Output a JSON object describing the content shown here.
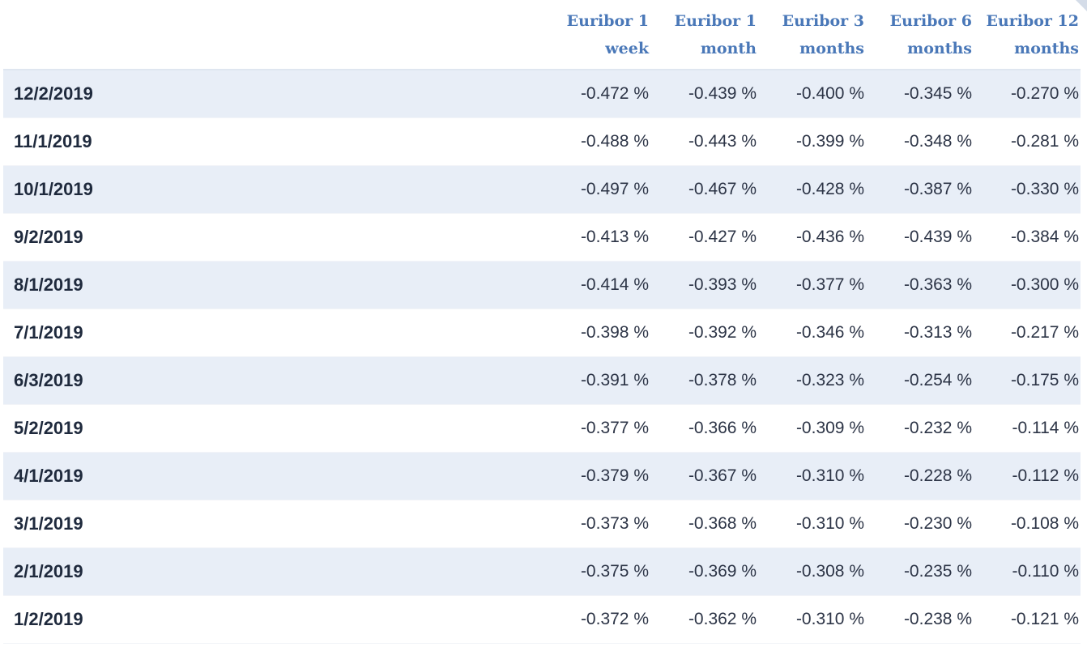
{
  "table": {
    "columns": [
      {
        "line1": "Euribor 1",
        "line2": "week"
      },
      {
        "line1": "Euribor 1",
        "line2": "month"
      },
      {
        "line1": "Euribor 3",
        "line2": "months"
      },
      {
        "line1": "Euribor 6",
        "line2": "months"
      },
      {
        "line1": "Euribor 12",
        "line2": "months"
      }
    ],
    "rows": [
      {
        "date": "12/2/2019",
        "values": [
          "-0.472 %",
          "-0.439 %",
          "-0.400 %",
          "-0.345 %",
          "-0.270 %"
        ]
      },
      {
        "date": "11/1/2019",
        "values": [
          "-0.488 %",
          "-0.443 %",
          "-0.399 %",
          "-0.348 %",
          "-0.281 %"
        ]
      },
      {
        "date": "10/1/2019",
        "values": [
          "-0.497 %",
          "-0.467 %",
          "-0.428 %",
          "-0.387 %",
          "-0.330 %"
        ]
      },
      {
        "date": "9/2/2019",
        "values": [
          "-0.413 %",
          "-0.427 %",
          "-0.436 %",
          "-0.439 %",
          "-0.384 %"
        ]
      },
      {
        "date": "8/1/2019",
        "values": [
          "-0.414 %",
          "-0.393 %",
          "-0.377 %",
          "-0.363 %",
          "-0.300 %"
        ]
      },
      {
        "date": "7/1/2019",
        "values": [
          "-0.398 %",
          "-0.392 %",
          "-0.346 %",
          "-0.313 %",
          "-0.217 %"
        ]
      },
      {
        "date": "6/3/2019",
        "values": [
          "-0.391 %",
          "-0.378 %",
          "-0.323 %",
          "-0.254 %",
          "-0.175 %"
        ]
      },
      {
        "date": "5/2/2019",
        "values": [
          "-0.377 %",
          "-0.366 %",
          "-0.309 %",
          "-0.232 %",
          "-0.114 %"
        ]
      },
      {
        "date": "4/1/2019",
        "values": [
          "-0.379 %",
          "-0.367 %",
          "-0.310 %",
          "-0.228 %",
          "-0.112 %"
        ]
      },
      {
        "date": "3/1/2019",
        "values": [
          "-0.373 %",
          "-0.368 %",
          "-0.310 %",
          "-0.230 %",
          "-0.108 %"
        ]
      },
      {
        "date": "2/1/2019",
        "values": [
          "-0.375 %",
          "-0.369 %",
          "-0.308 %",
          "-0.235 %",
          "-0.110 %"
        ]
      },
      {
        "date": "1/2/2019",
        "values": [
          "-0.372 %",
          "-0.362 %",
          "-0.310 %",
          "-0.238 %",
          "-0.121 %"
        ]
      }
    ]
  },
  "colors": {
    "header_text": "#4a78b8",
    "row_stripe": "#e8eef7",
    "date_text": "#1f2a3d",
    "value_text": "#2c3446"
  }
}
